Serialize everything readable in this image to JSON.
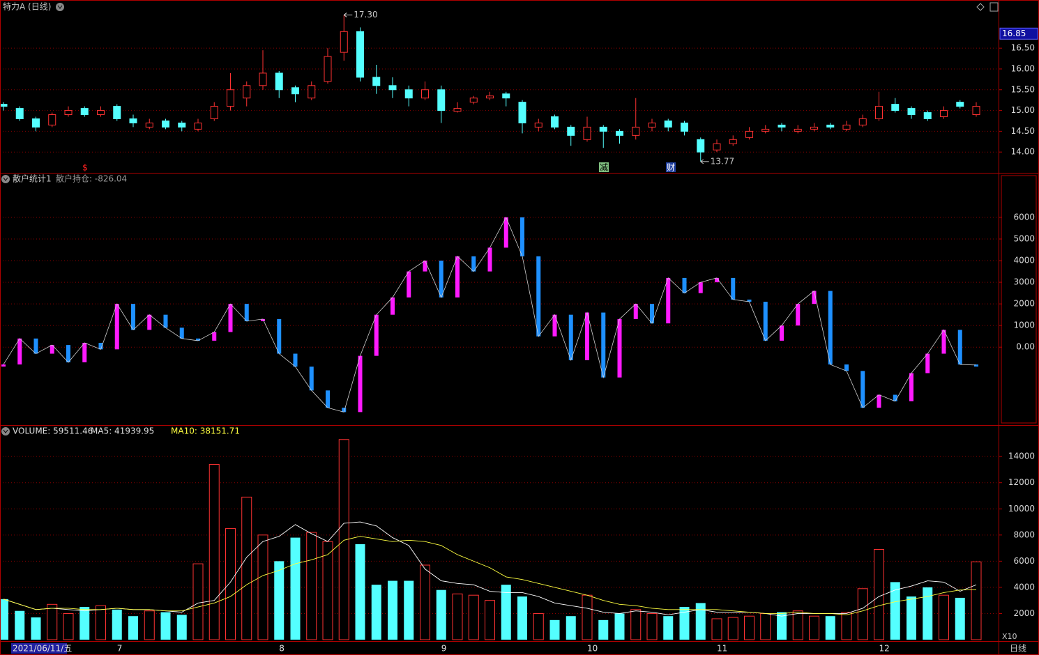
{
  "chart_data": [
    {
      "type": "candlestick",
      "title": "特力A (日线)",
      "open": [
        15.15,
        15.05,
        14.8,
        14.65,
        14.9,
        15.05,
        14.9,
        15.1,
        14.8,
        14.6,
        14.75,
        14.7,
        14.55,
        14.8,
        15.1,
        15.3,
        15.6,
        15.9,
        15.55,
        15.3,
        15.7,
        16.4,
        16.9,
        15.8,
        15.6,
        15.5,
        15.3,
        15.5,
        14.98,
        15.2,
        15.3,
        15.4,
        15.2,
        14.6,
        14.85,
        14.6,
        14.3,
        14.6,
        14.5,
        14.4,
        14.6,
        14.75,
        14.7,
        14.3,
        14.05,
        14.2,
        14.35,
        14.5,
        14.65,
        14.5,
        14.55,
        14.65,
        14.55,
        14.65,
        14.8,
        15.15,
        15.05,
        14.95,
        14.85,
        15.2,
        14.9
      ],
      "high": [
        15.2,
        15.1,
        14.85,
        14.95,
        15.1,
        15.1,
        15.1,
        15.15,
        14.9,
        14.8,
        14.8,
        14.75,
        14.8,
        15.2,
        15.9,
        15.7,
        16.45,
        15.95,
        15.6,
        15.7,
        16.5,
        17.3,
        17.0,
        16.1,
        15.8,
        15.6,
        15.7,
        15.6,
        15.2,
        15.35,
        15.45,
        15.45,
        15.25,
        14.8,
        14.9,
        14.65,
        14.85,
        14.65,
        14.55,
        15.3,
        14.8,
        14.8,
        14.75,
        14.35,
        14.3,
        14.4,
        14.6,
        14.65,
        14.7,
        14.65,
        14.7,
        14.7,
        14.75,
        14.9,
        15.45,
        15.3,
        15.1,
        15.0,
        15.1,
        15.25,
        15.2
      ],
      "low": [
        15.0,
        14.75,
        14.5,
        14.6,
        14.85,
        14.85,
        14.85,
        14.75,
        14.6,
        14.55,
        14.55,
        14.5,
        14.5,
        14.75,
        15.0,
        15.1,
        15.5,
        15.3,
        15.2,
        15.25,
        15.65,
        16.2,
        15.7,
        15.4,
        15.3,
        15.1,
        15.25,
        14.7,
        14.95,
        15.15,
        15.25,
        15.1,
        14.45,
        14.5,
        14.55,
        14.15,
        14.25,
        14.1,
        14.2,
        14.3,
        14.5,
        14.5,
        14.4,
        13.77,
        14.0,
        14.15,
        14.3,
        14.45,
        14.5,
        14.45,
        14.5,
        14.55,
        14.5,
        14.6,
        14.75,
        14.95,
        14.8,
        14.75,
        14.8,
        15.05,
        14.85
      ],
      "close": [
        15.1,
        14.8,
        14.6,
        14.9,
        15.0,
        14.9,
        15.0,
        14.8,
        14.7,
        14.7,
        14.6,
        14.6,
        14.7,
        15.1,
        15.5,
        15.6,
        15.9,
        15.5,
        15.4,
        15.6,
        16.3,
        16.9,
        15.8,
        15.6,
        15.5,
        15.3,
        15.5,
        15.0,
        15.05,
        15.3,
        15.35,
        15.3,
        14.7,
        14.7,
        14.6,
        14.4,
        14.6,
        14.5,
        14.4,
        14.6,
        14.7,
        14.6,
        14.5,
        14.0,
        14.2,
        14.3,
        14.5,
        14.55,
        14.6,
        14.55,
        14.6,
        14.6,
        14.65,
        14.8,
        15.1,
        15.0,
        14.9,
        14.8,
        15.0,
        15.1,
        15.1
      ],
      "up_color": "#ff3232",
      "down_color": "#54ffff",
      "ylim": [
        13.5,
        17.66
      ],
      "yticks": [
        {
          "value": 14,
          "label": "14.00"
        },
        {
          "value": 14.5,
          "label": "14.50"
        },
        {
          "value": 15,
          "label": "15.00"
        },
        {
          "value": 15.5,
          "label": "15.50"
        },
        {
          "value": 16,
          "label": "16.00"
        },
        {
          "value": 16.5,
          "label": "16.50"
        }
      ],
      "cursor_value": {
        "value": 16.85,
        "label": "16.85"
      },
      "annotations": [
        {
          "label": "17.30",
          "value": 17.3
        },
        {
          "label": "13.77",
          "value": 13.77
        }
      ],
      "event_markers": [
        "$",
        "减",
        "财"
      ],
      "grid": true
    },
    {
      "type": "line",
      "title": "散户统计1",
      "subtitle": "散户持仓: -826.04",
      "values": [
        -800,
        400,
        -300,
        100,
        -700,
        200,
        -100,
        2000,
        800,
        1500,
        900,
        400,
        300,
        700,
        2000,
        1200,
        1300,
        -300,
        -900,
        -2000,
        -2800,
        -3000,
        -400,
        1500,
        2300,
        3500,
        4000,
        2300,
        4200,
        3500,
        4600,
        6000,
        4200,
        500,
        1500,
        -600,
        1600,
        -1400,
        1300,
        2000,
        1100,
        3200,
        2500,
        3000,
        3200,
        2200,
        2100,
        300,
        1000,
        2000,
        2600,
        -800,
        -1100,
        -2800,
        -2200,
        -2500,
        -1200,
        -300,
        800,
        -800,
        -826.04
      ],
      "up_color": "#ff1aff",
      "down_color": "#1e90ff",
      "line_color": "#d0d0d0",
      "ylim": [
        -3600,
        8060
      ],
      "yticks": [
        {
          "value": 0,
          "label": "0.00"
        },
        1000,
        2000,
        3000,
        4000,
        5000,
        6000
      ],
      "grid": true
    },
    {
      "type": "bar",
      "categories": [
        "2021/06/11/五",
        null,
        null,
        null,
        null,
        null,
        null,
        "7",
        null,
        null,
        null,
        null,
        null,
        null,
        null,
        null,
        null,
        "8",
        null,
        null,
        null,
        null,
        null,
        null,
        null,
        null,
        null,
        "9",
        null,
        null,
        null,
        null,
        null,
        null,
        null,
        null,
        "10",
        null,
        null,
        null,
        null,
        null,
        null,
        null,
        "11",
        null,
        null,
        null,
        null,
        null,
        null,
        null,
        null,
        null,
        "12",
        null,
        null,
        null,
        null,
        null,
        null
      ],
      "series": [
        {
          "name": "VOLUME: 59511.46",
          "color": "#ff3232",
          "down_color": "#54ffff",
          "values": [
            3100,
            2200,
            1700,
            2700,
            2000,
            2500,
            2600,
            2300,
            1800,
            2200,
            2100,
            1900,
            5800,
            13400,
            8500,
            10900,
            8000,
            6000,
            7800,
            8200,
            7500,
            15300,
            7300,
            4200,
            4500,
            4500,
            5700,
            3800,
            3500,
            3400,
            3000,
            4200,
            3300,
            2000,
            1500,
            1800,
            3400,
            1500,
            2000,
            2300,
            2000,
            1800,
            2500,
            2800,
            1600,
            1700,
            1800,
            2000,
            2100,
            2200,
            1800,
            1800,
            2100,
            3900,
            6900,
            4400,
            3300,
            4000,
            3400,
            3200,
            5951.146
          ]
        },
        {
          "name": "MA5: 41939.95",
          "color": "#ffffff",
          "values": [
            3100,
            2700,
            2300,
            2400,
            2300,
            2200,
            2300,
            2400,
            2300,
            2300,
            2200,
            2100,
            2800,
            3000,
            4400,
            6300,
            7500,
            7900,
            8800,
            8100,
            7500,
            8900,
            9000,
            8700,
            7800,
            7200,
            5400,
            4500,
            4300,
            4200,
            3700,
            3600,
            3600,
            3300,
            2800,
            2600,
            2400,
            2100,
            2000,
            2200,
            2100,
            1900,
            2100,
            2300,
            2100,
            2100,
            2100,
            2000,
            1800,
            2000,
            2000,
            2000,
            2000,
            2400,
            3300,
            3800,
            4100,
            4500,
            4400,
            3700,
            4194
          ]
        },
        {
          "name": "MA10: 38151.71",
          "color": "#ffff40",
          "values": [
            3100,
            2700,
            2300,
            2400,
            2400,
            2300,
            2300,
            2400,
            2300,
            2300,
            2200,
            2200,
            2500,
            2800,
            3300,
            4200,
            4900,
            5300,
            5800,
            6100,
            6500,
            7600,
            7900,
            7700,
            7500,
            7600,
            7500,
            7200,
            6500,
            6000,
            5500,
            4800,
            4600,
            4300,
            4000,
            3700,
            3400,
            3000,
            2700,
            2600,
            2400,
            2300,
            2300,
            2300,
            2300,
            2200,
            2100,
            2000,
            2000,
            2100,
            2000,
            2000,
            1900,
            2200,
            2600,
            2900,
            3100,
            3300,
            3600,
            3800,
            3815
          ]
        }
      ],
      "ylim": [
        0,
        16300
      ],
      "yticks": [
        2000,
        4000,
        6000,
        8000,
        10000,
        12000,
        14000
      ],
      "unit_label": "X10",
      "period_label": "日线",
      "grid": true
    }
  ]
}
